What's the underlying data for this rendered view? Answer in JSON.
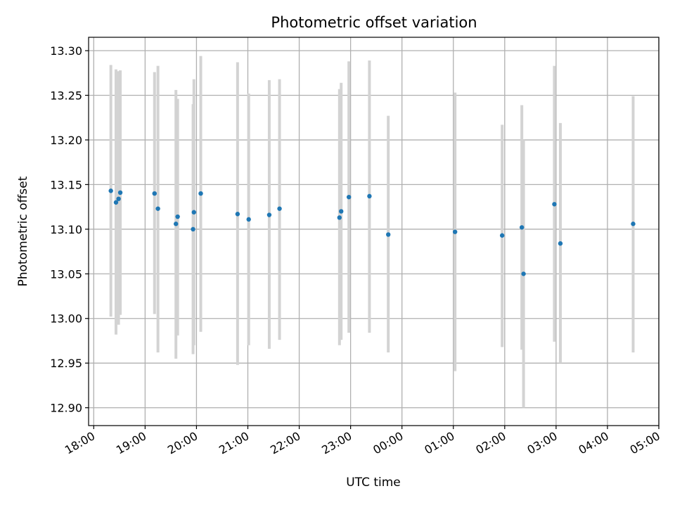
{
  "chart_data": {
    "type": "scatter",
    "title": "Photometric offset variation",
    "xlabel": "UTC time",
    "ylabel": "Photometric offset",
    "x_axis_kind": "time",
    "xlim": [
      "17:54",
      "05:00"
    ],
    "ylim": [
      12.88,
      13.315
    ],
    "grid": true,
    "x_ticks": [
      "18:00",
      "19:00",
      "20:00",
      "21:00",
      "22:00",
      "23:00",
      "00:00",
      "01:00",
      "02:00",
      "03:00",
      "04:00",
      "05:00"
    ],
    "y_ticks": [
      "12.90",
      "12.95",
      "13.00",
      "13.05",
      "13.10",
      "13.15",
      "13.20",
      "13.25",
      "13.30"
    ],
    "marker_color": "#1f77b4",
    "errorbar_color": "#d3d3d3",
    "points": [
      {
        "x": "18:20",
        "y": 13.143,
        "ylow": 13.002,
        "yhigh": 13.284
      },
      {
        "x": "18:26",
        "y": 13.13,
        "ylow": 12.982,
        "yhigh": 13.279
      },
      {
        "x": "18:29",
        "y": 13.134,
        "ylow": 12.993,
        "yhigh": 13.277
      },
      {
        "x": "18:31",
        "y": 13.141,
        "ylow": 13.004,
        "yhigh": 13.278
      },
      {
        "x": "19:11",
        "y": 13.14,
        "ylow": 13.005,
        "yhigh": 13.276
      },
      {
        "x": "19:15",
        "y": 13.123,
        "ylow": 12.962,
        "yhigh": 13.283
      },
      {
        "x": "19:36",
        "y": 13.106,
        "ylow": 12.955,
        "yhigh": 13.256
      },
      {
        "x": "19:38",
        "y": 13.114,
        "ylow": 12.981,
        "yhigh": 13.246
      },
      {
        "x": "19:56",
        "y": 13.1,
        "ylow": 12.96,
        "yhigh": 13.24
      },
      {
        "x": "19:57",
        "y": 13.119,
        "ylow": 12.97,
        "yhigh": 13.268
      },
      {
        "x": "20:05",
        "y": 13.14,
        "ylow": 12.985,
        "yhigh": 13.294
      },
      {
        "x": "20:48",
        "y": 13.117,
        "ylow": 12.948,
        "yhigh": 13.287
      },
      {
        "x": "21:01",
        "y": 13.111,
        "ylow": 12.97,
        "yhigh": 13.252
      },
      {
        "x": "21:25",
        "y": 13.116,
        "ylow": 12.966,
        "yhigh": 13.267
      },
      {
        "x": "21:37",
        "y": 13.123,
        "ylow": 12.976,
        "yhigh": 13.268
      },
      {
        "x": "22:47",
        "y": 13.113,
        "ylow": 12.97,
        "yhigh": 13.257
      },
      {
        "x": "22:49",
        "y": 13.12,
        "ylow": 12.976,
        "yhigh": 13.264
      },
      {
        "x": "22:58",
        "y": 13.136,
        "ylow": 12.984,
        "yhigh": 13.288
      },
      {
        "x": "23:22",
        "y": 13.137,
        "ylow": 12.984,
        "yhigh": 13.289
      },
      {
        "x": "23:44",
        "y": 13.094,
        "ylow": 12.962,
        "yhigh": 13.227
      },
      {
        "x": "01:02",
        "y": 13.097,
        "ylow": 12.941,
        "yhigh": 13.253
      },
      {
        "x": "01:57",
        "y": 13.093,
        "ylow": 12.968,
        "yhigh": 13.217
      },
      {
        "x": "02:20",
        "y": 13.102,
        "ylow": 12.965,
        "yhigh": 13.239
      },
      {
        "x": "02:22",
        "y": 13.05,
        "ylow": 12.9,
        "yhigh": 13.2
      },
      {
        "x": "02:58",
        "y": 13.128,
        "ylow": 12.974,
        "yhigh": 13.283
      },
      {
        "x": "03:05",
        "y": 13.084,
        "ylow": 12.95,
        "yhigh": 13.219
      },
      {
        "x": "04:30",
        "y": 13.106,
        "ylow": 12.962,
        "yhigh": 13.249
      }
    ]
  }
}
